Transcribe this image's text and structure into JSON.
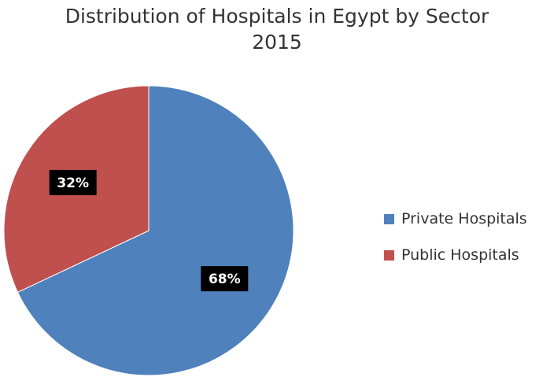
{
  "chart_data": {
    "type": "pie",
    "title": "Distribution of Hospitals in Egypt by Sector",
    "subtitle": "2015",
    "slices": [
      {
        "label": "Private Hospitals",
        "value": 68,
        "data_label": "68%",
        "color": "#4F81BD"
      },
      {
        "label": "Public Hospitals",
        "value": 32,
        "data_label": "32%",
        "color": "#C0504D"
      }
    ],
    "legend_position": "right",
    "start_angle": "top, clockwise"
  }
}
